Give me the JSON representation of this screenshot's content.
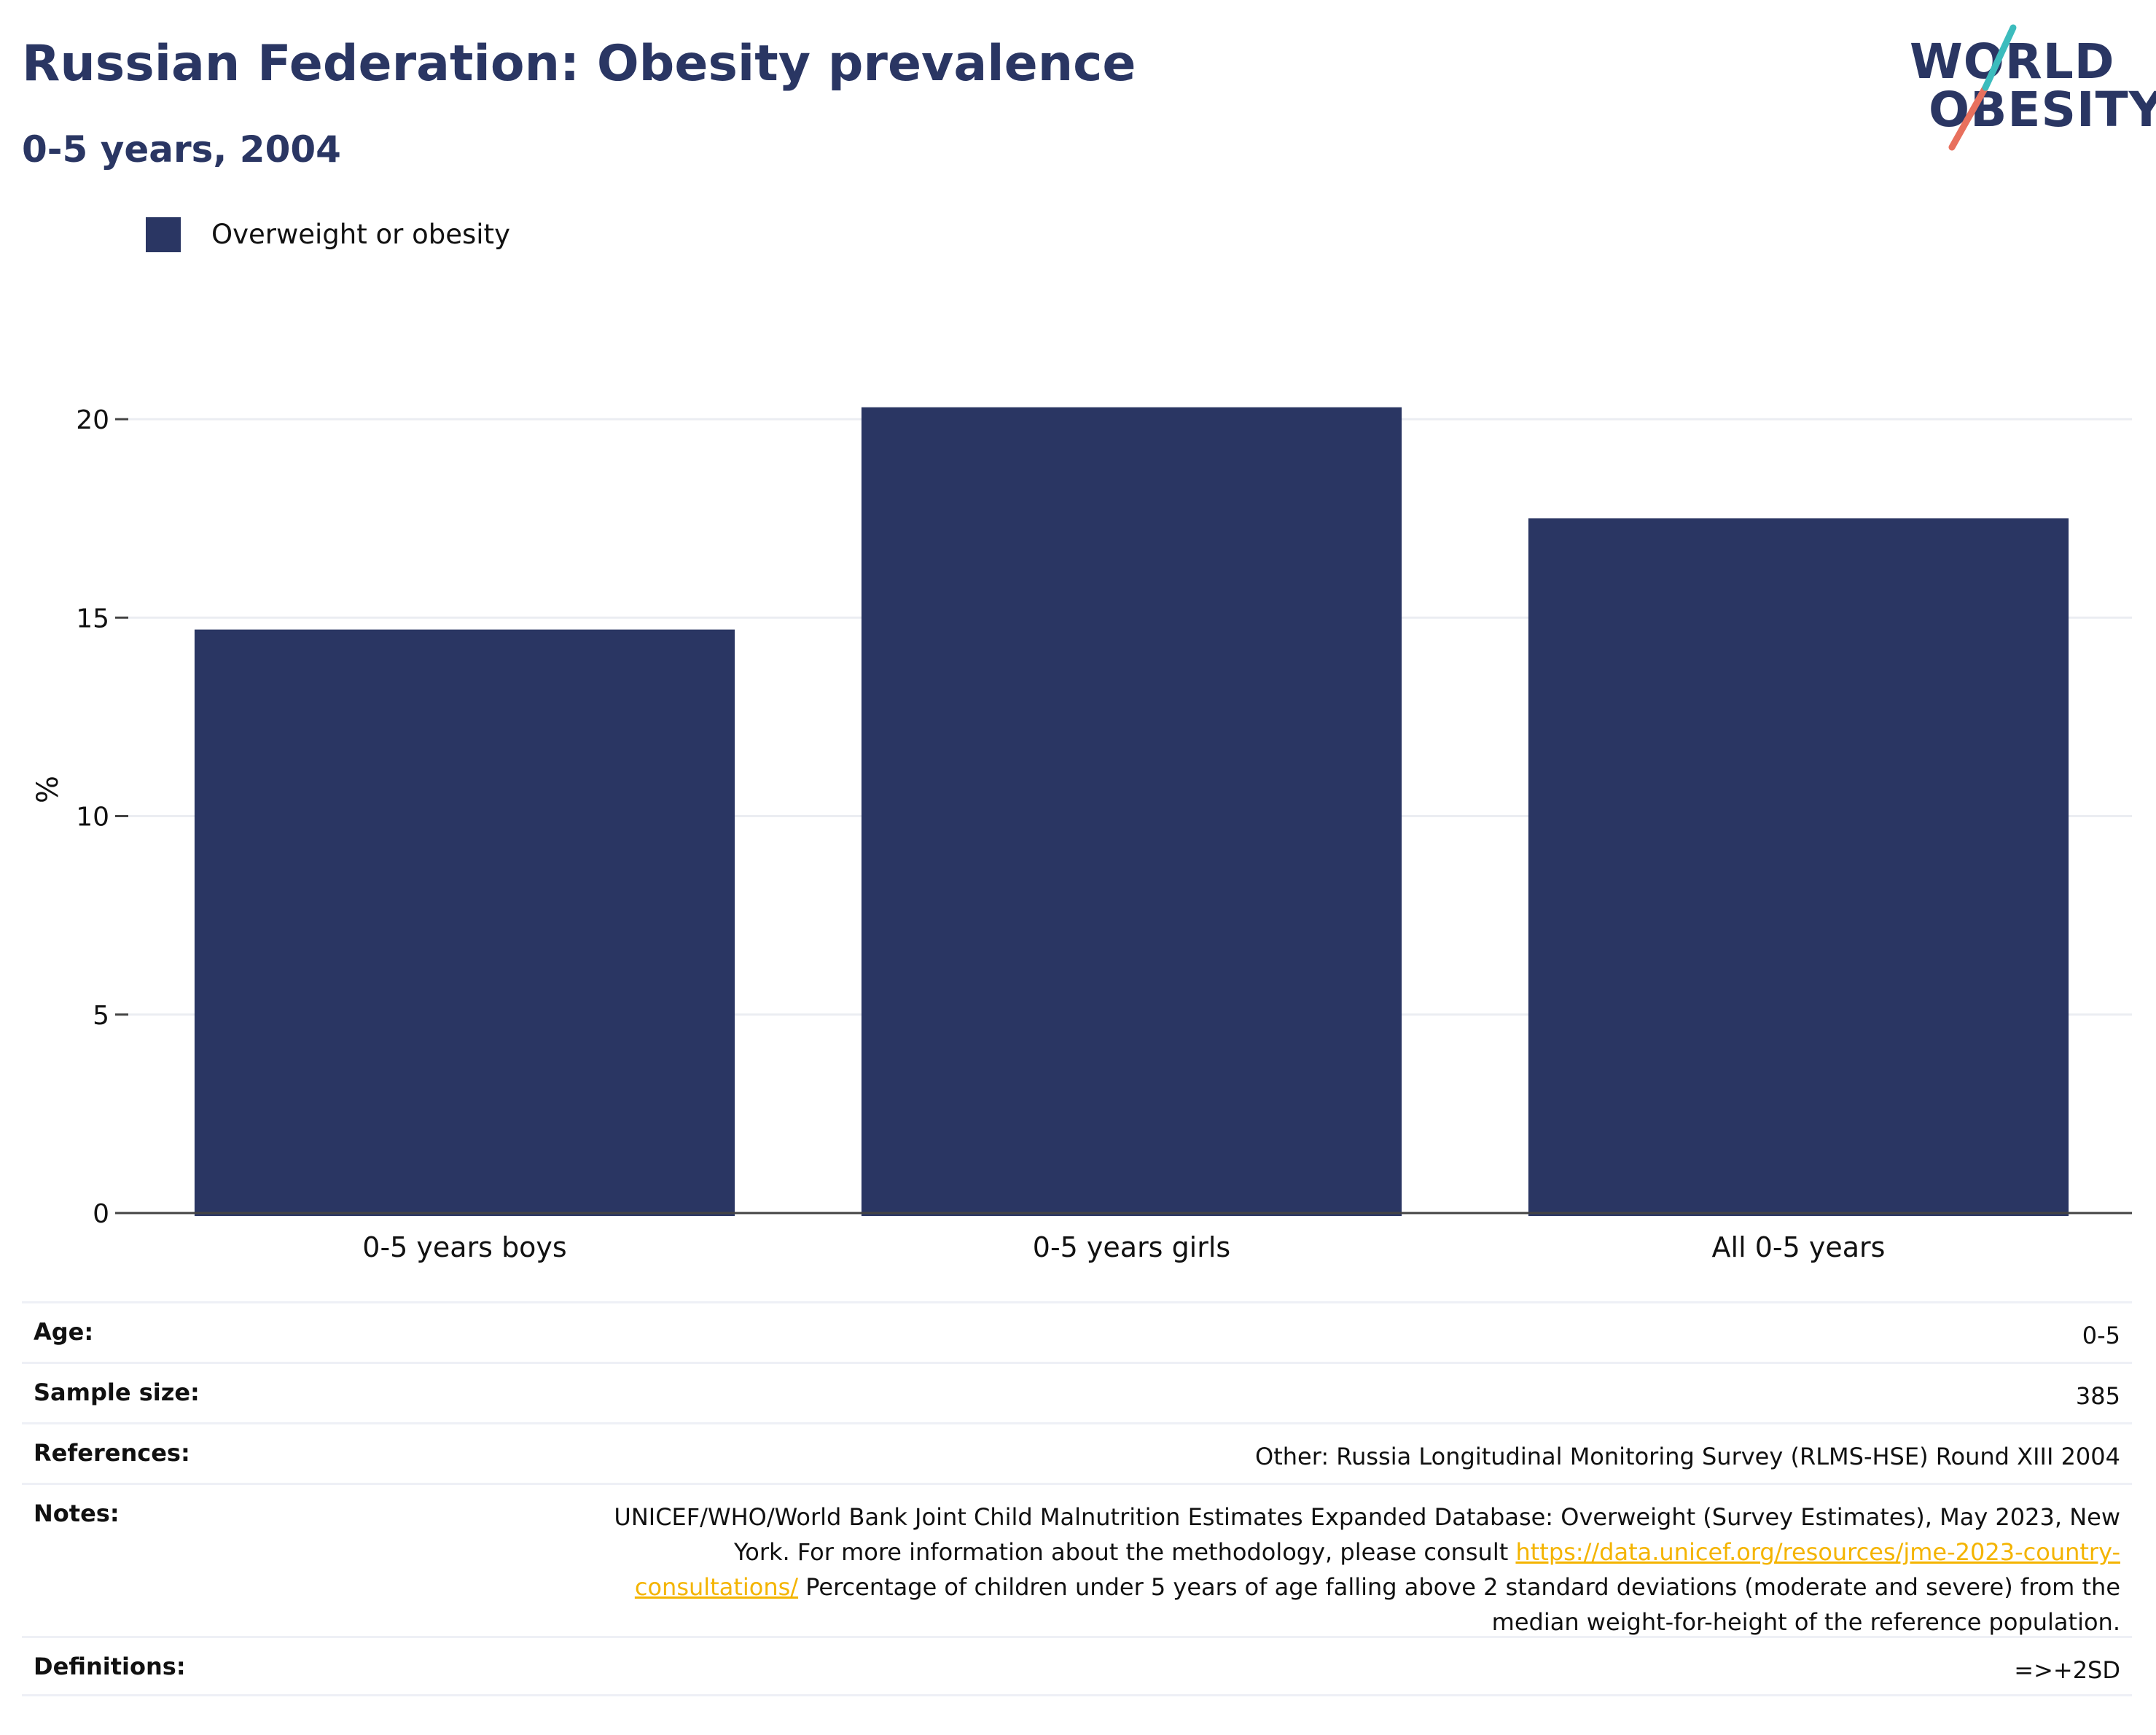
{
  "header": {
    "title": "Russian Federation: Obesity prevalence",
    "subtitle": "0-5 years, 2004"
  },
  "logo": {
    "line1": "WORLD",
    "line2": "OBESITY",
    "colors": {
      "text": "#2a3663",
      "slash_top": "#3cbcbd",
      "slash_bottom": "#e8705d"
    }
  },
  "legend": {
    "label": "Overweight or obesity",
    "color": "#2a3663"
  },
  "chart_data": {
    "type": "bar",
    "categories": [
      "0-5 years boys",
      "0-5 years girls",
      "All 0-5 years"
    ],
    "series": [
      {
        "name": "Overweight or obesity",
        "values": [
          14.7,
          20.3,
          17.5
        ],
        "color": "#2a3663"
      }
    ],
    "ylabel": "%",
    "yticks": [
      0,
      5,
      10,
      15,
      20
    ],
    "ylim": [
      0,
      21.5
    ],
    "grid": true,
    "legend_position": "top-left"
  },
  "info": {
    "age": {
      "key": "Age:",
      "value": "0-5"
    },
    "sample_size": {
      "key": "Sample size:",
      "value": "385"
    },
    "references": {
      "key": "References:",
      "value": "Other: Russia Longitudinal Monitoring Survey (RLMS-HSE) Round XIII 2004"
    },
    "notes": {
      "key": "Notes:",
      "text_before": "UNICEF/WHO/World Bank Joint Child Malnutrition Estimates Expanded Database: Overweight (Survey Estimates), May 2023, New York. For more information about the methodology, please consult ",
      "link": "https://data.unicef.org/resources/jme-2023-country-consultations/",
      "text_after": " Percentage of children under 5 years of age falling above 2 standard deviations (moderate and severe) from the median weight-for-height of the reference population."
    },
    "definitions": {
      "key": "Definitions:",
      "value": "=>+2SD"
    }
  }
}
